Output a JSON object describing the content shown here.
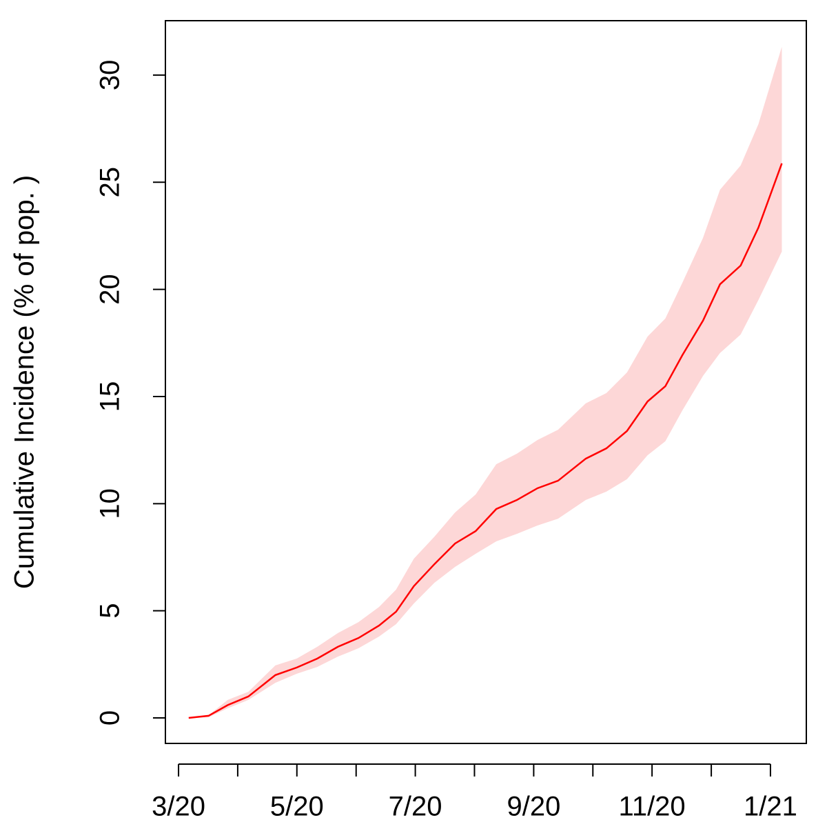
{
  "chart_data": {
    "type": "line",
    "y_label": "Cumulative Incidence (% of pop. )",
    "x": [
      2020.181,
      2020.209,
      2020.236,
      2020.265,
      2020.303,
      2020.333,
      2020.362,
      2020.391,
      2020.42,
      2020.449,
      2020.473,
      2020.498,
      2020.527,
      2020.556,
      2020.585,
      2020.614,
      2020.643,
      2020.672,
      2020.701,
      2020.74,
      2020.769,
      2020.798,
      2020.827,
      2020.852,
      2020.876,
      2020.905,
      2020.929,
      2020.958,
      2020.983,
      2021.016
    ],
    "series": [
      {
        "color": "#ff0000",
        "band_color": "#fdd7d7",
        "values": [
          0,
          0.1,
          0.6,
          1.0,
          2.0,
          2.35,
          2.77,
          3.32,
          3.73,
          4.31,
          4.96,
          6.15,
          7.18,
          8.14,
          8.72,
          9.75,
          10.17,
          10.72,
          11.07,
          12.1,
          12.58,
          13.39,
          14.77,
          15.48,
          16.93,
          18.54,
          20.24,
          21.11,
          22.88,
          25.88
        ],
        "upper": [
          0,
          0.13,
          0.84,
          1.22,
          2.45,
          2.77,
          3.32,
          3.96,
          4.47,
          5.18,
          5.99,
          7.43,
          8.46,
          9.59,
          10.43,
          11.84,
          12.33,
          12.97,
          13.45,
          14.68,
          15.16,
          16.12,
          17.8,
          18.64,
          20.31,
          22.4,
          24.65,
          25.78,
          27.71,
          31.32
        ],
        "lower": [
          0,
          0.03,
          0.45,
          0.84,
          1.64,
          2.06,
          2.38,
          2.86,
          3.25,
          3.8,
          4.38,
          5.34,
          6.31,
          7.05,
          7.66,
          8.24,
          8.59,
          8.98,
          9.3,
          10.17,
          10.56,
          11.14,
          12.26,
          12.91,
          14.35,
          15.96,
          17.03,
          17.89,
          19.5,
          21.76
        ]
      }
    ],
    "xlim": [
      2020.1482,
      2021.0505
    ],
    "ylim": [
      -1.19,
      32.54
    ],
    "yticks": [
      0,
      5,
      10,
      15,
      20,
      25,
      30
    ],
    "xticks": [
      {
        "value": 2020.1667,
        "label": "3/20"
      },
      {
        "value": 2020.25,
        "label": null
      },
      {
        "value": 2020.3333,
        "label": "5/20"
      },
      {
        "value": 2020.4167,
        "label": null
      },
      {
        "value": 2020.5,
        "label": "7/20"
      },
      {
        "value": 2020.5833,
        "label": null
      },
      {
        "value": 2020.6667,
        "label": "9/20"
      },
      {
        "value": 2020.75,
        "label": null
      },
      {
        "value": 2020.8333,
        "label": "11/20"
      },
      {
        "value": 2020.9167,
        "label": null
      },
      {
        "value": 2021.0,
        "label": "1/21"
      }
    ]
  }
}
